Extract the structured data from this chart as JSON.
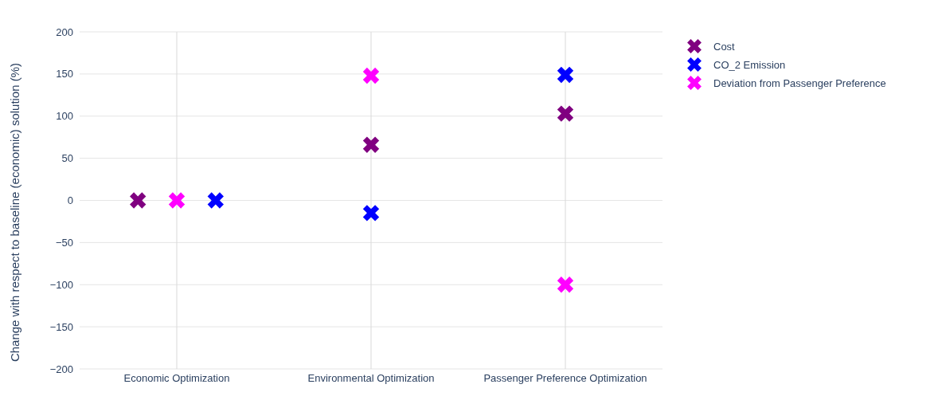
{
  "chart_data": {
    "type": "scatter",
    "ylabel": "Change with respect to baseline (economic) solution (%)",
    "categories": [
      "Economic Optimization",
      "Environmental Optimization",
      "Passenger Preference Optimization"
    ],
    "ylim": [
      -200,
      200
    ],
    "yticks": [
      -200,
      -150,
      -100,
      -50,
      0,
      50,
      100,
      150,
      200
    ],
    "grid": true,
    "legend": "top right",
    "marker": "cross",
    "series": [
      {
        "name": "Cost",
        "color": "#800080",
        "values": [
          0,
          66,
          103
        ]
      },
      {
        "name": "CO_2 Emission",
        "color": "#0000ff",
        "values": [
          0,
          -15,
          149
        ]
      },
      {
        "name": "Deviation from Passenger Preference",
        "color": "#ff00ff",
        "values": [
          0,
          148,
          -100
        ]
      }
    ]
  }
}
